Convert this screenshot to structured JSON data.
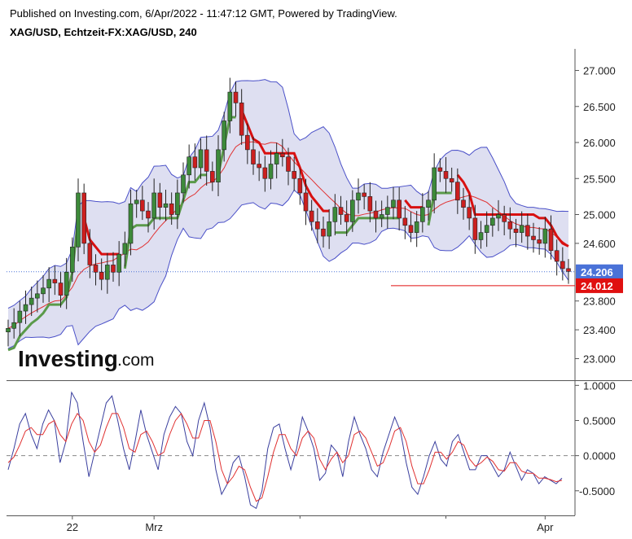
{
  "header": {
    "published": "Published on Investing.com, 6/Apr/2022 - 11:47:12 GMT, Powered by TradingView.",
    "symbol": "XAG/USD, Echtzeit-FX:XAG/USD, 240"
  },
  "logo": {
    "word": "Investing",
    "suffix": ".com"
  },
  "colors": {
    "up": "#3d8a3a",
    "down": "#cc1f1f",
    "band_fill": "#d8d9ee",
    "band_line": "#4a50c8",
    "ma": "#e03030",
    "support": "#5a9a4a",
    "resistance": "#d81010",
    "osc_blue": "#3a3f9e",
    "osc_red": "#e03030",
    "price_badge": "#4a72d8",
    "level_badge": "#e01010"
  },
  "chart_data": [
    {
      "type": "candlestick",
      "title": "XAG/USD, Echtzeit-FX:XAG/USD, 240",
      "ylim": [
        22.7,
        27.3
      ],
      "y_ticks": [
        "27.000",
        "26.500",
        "26.000",
        "25.500",
        "25.000",
        "24.600",
        "23.800",
        "23.400",
        "23.000"
      ],
      "y_tick_values": [
        27.0,
        26.5,
        26.0,
        25.5,
        25.0,
        24.6,
        23.8,
        23.4,
        23.0
      ],
      "x_labels": [
        "22",
        "Mrz",
        "Apr"
      ],
      "x_label_index": [
        11,
        25,
        92
      ],
      "last_price": "24.206",
      "last_price_value": 24.206,
      "level": "24.012",
      "level_value": 24.012,
      "close": [
        23.42,
        23.5,
        23.66,
        23.75,
        23.84,
        23.9,
        23.98,
        24.1,
        24.05,
        23.88,
        24.2,
        24.55,
        25.3,
        24.6,
        24.3,
        24.2,
        24.1,
        24.3,
        24.2,
        24.45,
        24.6,
        25.15,
        25.2,
        25.05,
        24.95,
        25.3,
        25.1,
        25.15,
        25.0,
        25.3,
        25.55,
        25.8,
        25.65,
        25.9,
        25.6,
        25.45,
        25.9,
        26.3,
        26.7,
        26.55,
        26.1,
        25.9,
        25.7,
        25.65,
        25.5,
        25.7,
        25.85,
        25.8,
        25.6,
        25.5,
        25.3,
        25.05,
        24.9,
        24.8,
        24.7,
        24.9,
        25.1,
        25.0,
        24.9,
        25.2,
        25.3,
        25.25,
        25.05,
        24.95,
        25.0,
        25.1,
        25.2,
        24.95,
        24.85,
        24.75,
        24.9,
        25.1,
        25.2,
        25.65,
        25.6,
        25.5,
        25.45,
        25.2,
        25.1,
        24.95,
        24.65,
        24.75,
        24.85,
        24.95,
        25.0,
        24.9,
        24.8,
        24.75,
        24.85,
        24.7,
        24.65,
        24.6,
        24.8,
        24.5,
        24.35,
        24.25,
        24.21
      ],
      "oscillator": {
        "ylim": [
          -0.85,
          1.05
        ],
        "y_ticks": [
          "1.0000",
          "0.5000",
          "0.0000",
          "-0.5000"
        ],
        "y_tick_values": [
          1.0,
          0.5,
          0.0,
          -0.5
        ],
        "fast": [
          -0.2,
          0.1,
          0.45,
          0.6,
          0.3,
          0.1,
          0.45,
          0.65,
          0.5,
          -0.1,
          0.2,
          0.9,
          0.75,
          0.2,
          -0.3,
          0.05,
          0.4,
          0.75,
          0.85,
          0.5,
          0.1,
          -0.2,
          0.2,
          0.65,
          0.3,
          0.05,
          -0.2,
          0.3,
          0.55,
          0.7,
          0.6,
          0.2,
          0.0,
          0.5,
          0.75,
          0.4,
          -0.2,
          -0.55,
          -0.4,
          -0.1,
          0.0,
          -0.3,
          -0.7,
          -0.75,
          -0.5,
          0.1,
          0.4,
          0.45,
          0.1,
          -0.2,
          0.1,
          0.55,
          0.35,
          0.1,
          -0.35,
          -0.25,
          0.15,
          0.05,
          -0.3,
          0.2,
          0.55,
          0.3,
          0.1,
          -0.2,
          -0.3,
          0.05,
          0.3,
          0.55,
          0.35,
          -0.1,
          -0.45,
          -0.55,
          -0.3,
          0.0,
          0.2,
          -0.05,
          -0.15,
          0.2,
          0.3,
          0.05,
          -0.2,
          -0.2,
          0.0,
          0.0,
          -0.15,
          -0.3,
          -0.2,
          0.05,
          -0.15,
          -0.35,
          -0.2,
          -0.25,
          -0.4,
          -0.3,
          -0.35,
          -0.4,
          -0.32
        ],
        "signal": [
          -0.1,
          -0.02,
          0.15,
          0.35,
          0.4,
          0.3,
          0.3,
          0.45,
          0.5,
          0.3,
          0.2,
          0.45,
          0.6,
          0.5,
          0.2,
          0.05,
          0.15,
          0.4,
          0.6,
          0.6,
          0.4,
          0.1,
          0.05,
          0.3,
          0.35,
          0.2,
          0.0,
          0.05,
          0.3,
          0.5,
          0.6,
          0.45,
          0.25,
          0.25,
          0.5,
          0.5,
          0.2,
          -0.2,
          -0.4,
          -0.3,
          -0.15,
          -0.2,
          -0.45,
          -0.65,
          -0.6,
          -0.3,
          0.05,
          0.3,
          0.3,
          0.1,
          0.0,
          0.25,
          0.35,
          0.25,
          -0.05,
          -0.2,
          -0.05,
          0.05,
          -0.1,
          0.0,
          0.3,
          0.35,
          0.25,
          0.05,
          -0.15,
          -0.1,
          0.1,
          0.35,
          0.4,
          0.2,
          -0.15,
          -0.4,
          -0.4,
          -0.2,
          0.05,
          0.05,
          -0.05,
          0.05,
          0.2,
          0.15,
          -0.05,
          -0.15,
          -0.1,
          -0.02,
          -0.08,
          -0.2,
          -0.22,
          -0.1,
          -0.1,
          -0.22,
          -0.25,
          -0.25,
          -0.32,
          -0.32,
          -0.34,
          -0.37,
          -0.35
        ]
      }
    }
  ]
}
